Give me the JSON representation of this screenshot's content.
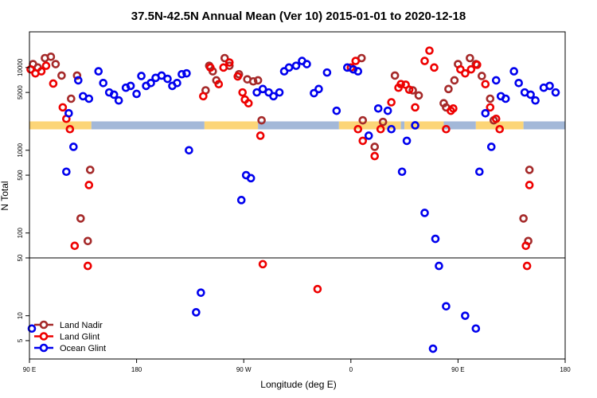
{
  "chart_data": {
    "type": "scatter",
    "title": "37.5N-42.5N Annual Mean (Ver 10)   2015-01-01 to 2020-12-18",
    "xlabel": "Longitude (deg E)",
    "ylabel": "N Total",
    "y_scale": "log",
    "x_tick_labels": [
      {
        "value": 90,
        "label": "90 E"
      },
      {
        "value": 180,
        "label": "180"
      },
      {
        "value": 270,
        "label": "90 W"
      },
      {
        "value": 360,
        "label": "0"
      },
      {
        "value": 450,
        "label": "90 E"
      },
      {
        "value": 540,
        "label": "180"
      }
    ],
    "y_tick_labels": [
      {
        "value": 5,
        "label": "5"
      },
      {
        "value": 10,
        "label": "10"
      },
      {
        "value": 50,
        "label": "50"
      },
      {
        "value": 100,
        "label": "100"
      },
      {
        "value": 500,
        "label": "500"
      },
      {
        "value": 1000,
        "label": "1000"
      },
      {
        "value": 5000,
        "label": "5000"
      },
      {
        "value": 10000,
        "label": "10000"
      }
    ],
    "xlim": [
      90,
      540
    ],
    "ylim": [
      3,
      27000
    ],
    "reference_line_y": 50,
    "surface_band": {
      "y": 2000,
      "segments": [
        {
          "type": "land",
          "from": 90,
          "to": 142
        },
        {
          "type": "ocean",
          "from": 142,
          "to": 237
        },
        {
          "type": "land",
          "from": 237,
          "to": 282
        },
        {
          "type": "ocean",
          "from": 282,
          "to": 350
        },
        {
          "type": "land",
          "from": 350,
          "to": 402
        },
        {
          "type": "ocean",
          "from": 402,
          "to": 405
        },
        {
          "type": "land",
          "from": 405,
          "to": 438
        },
        {
          "type": "ocean",
          "from": 438,
          "to": 465
        },
        {
          "type": "land",
          "from": 465,
          "to": 505
        },
        {
          "type": "ocean",
          "from": 505,
          "to": 540
        }
      ],
      "colors": {
        "land": "#fcd577",
        "ocean": "#a3b8d8"
      }
    },
    "series": [
      {
        "name": "Land Nadir",
        "color": "#a52a2a",
        "points": [
          [
            93,
            11000
          ],
          [
            97,
            10000
          ],
          [
            103,
            13000
          ],
          [
            108,
            13500
          ],
          [
            112,
            11000
          ],
          [
            117,
            8000
          ],
          [
            125,
            4200
          ],
          [
            130,
            8000
          ],
          [
            133,
            150
          ],
          [
            139,
            80
          ],
          [
            141,
            580
          ],
          [
            238,
            5300
          ],
          [
            241,
            10500
          ],
          [
            244,
            9000
          ],
          [
            247,
            7000
          ],
          [
            254,
            13000
          ],
          [
            258,
            10500
          ],
          [
            266,
            8300
          ],
          [
            273,
            7200
          ],
          [
            278,
            6800
          ],
          [
            282,
            7000
          ],
          [
            285,
            2300
          ],
          [
            369,
            13000
          ],
          [
            370,
            2300
          ],
          [
            380,
            1100
          ],
          [
            387,
            2200
          ],
          [
            397,
            8000
          ],
          [
            412,
            5300
          ],
          [
            417,
            4600
          ],
          [
            438,
            3700
          ],
          [
            440,
            3300
          ],
          [
            442,
            5500
          ],
          [
            447,
            7000
          ],
          [
            450,
            11000
          ],
          [
            460,
            13000
          ],
          [
            465,
            11000
          ],
          [
            470,
            7900
          ],
          [
            477,
            4200
          ],
          [
            480,
            2300
          ],
          [
            505,
            150
          ],
          [
            509,
            80
          ],
          [
            510,
            580
          ]
        ]
      },
      {
        "name": "Land Glint",
        "color": "#ee0000",
        "points": [
          [
            91,
            9500
          ],
          [
            95,
            8500
          ],
          [
            100,
            9000
          ],
          [
            104,
            10500
          ],
          [
            110,
            6400
          ],
          [
            118,
            3300
          ],
          [
            121,
            2400
          ],
          [
            124,
            1800
          ],
          [
            128,
            70
          ],
          [
            139,
            40
          ],
          [
            140,
            380
          ],
          [
            236,
            4500
          ],
          [
            242,
            10000
          ],
          [
            249,
            6300
          ],
          [
            253,
            10000
          ],
          [
            258,
            11500
          ],
          [
            265,
            7800
          ],
          [
            269,
            5000
          ],
          [
            271,
            4100
          ],
          [
            274,
            3700
          ],
          [
            284,
            1500
          ],
          [
            286,
            42
          ],
          [
            332,
            21
          ],
          [
            360,
            10000
          ],
          [
            364,
            12000
          ],
          [
            366,
            1800
          ],
          [
            370,
            1300
          ],
          [
            380,
            850
          ],
          [
            385,
            1800
          ],
          [
            394,
            3800
          ],
          [
            400,
            5700
          ],
          [
            402,
            6300
          ],
          [
            406,
            6200
          ],
          [
            409,
            5400
          ],
          [
            414,
            3300
          ],
          [
            422,
            12000
          ],
          [
            426,
            16000
          ],
          [
            430,
            10000
          ],
          [
            440,
            1800
          ],
          [
            444,
            3000
          ],
          [
            446,
            3200
          ],
          [
            452,
            9500
          ],
          [
            456,
            8500
          ],
          [
            461,
            9500
          ],
          [
            466,
            10800
          ],
          [
            473,
            6300
          ],
          [
            477,
            3300
          ],
          [
            482,
            2400
          ],
          [
            485,
            1800
          ],
          [
            507,
            70
          ],
          [
            508,
            40
          ],
          [
            510,
            380
          ]
        ]
      },
      {
        "name": "Ocean Glint",
        "color": "#0000ee",
        "points": [
          [
            92,
            7
          ],
          [
            121,
            550
          ],
          [
            123,
            2800
          ],
          [
            127,
            1100
          ],
          [
            131,
            7000
          ],
          [
            135,
            4500
          ],
          [
            140,
            4200
          ],
          [
            148,
            9000
          ],
          [
            152,
            6500
          ],
          [
            157,
            5000
          ],
          [
            161,
            4700
          ],
          [
            165,
            4000
          ],
          [
            171,
            5700
          ],
          [
            175,
            6000
          ],
          [
            180,
            4800
          ],
          [
            184,
            7900
          ],
          [
            188,
            6000
          ],
          [
            192,
            6500
          ],
          [
            196,
            7500
          ],
          [
            201,
            8000
          ],
          [
            206,
            7300
          ],
          [
            210,
            6000
          ],
          [
            214,
            6500
          ],
          [
            218,
            8300
          ],
          [
            222,
            8500
          ],
          [
            224,
            1000
          ],
          [
            230,
            11
          ],
          [
            234,
            19
          ],
          [
            268,
            250
          ],
          [
            272,
            500
          ],
          [
            276,
            460
          ],
          [
            281,
            5000
          ],
          [
            286,
            5500
          ],
          [
            291,
            5000
          ],
          [
            295,
            4500
          ],
          [
            300,
            5000
          ],
          [
            304,
            9000
          ],
          [
            308,
            10000
          ],
          [
            314,
            10500
          ],
          [
            319,
            12000
          ],
          [
            323,
            11000
          ],
          [
            329,
            4900
          ],
          [
            333,
            5500
          ],
          [
            340,
            8700
          ],
          [
            348,
            3000
          ],
          [
            357,
            10000
          ],
          [
            362,
            9500
          ],
          [
            366,
            9000
          ],
          [
            375,
            1500
          ],
          [
            383,
            3200
          ],
          [
            391,
            3000
          ],
          [
            394,
            1800
          ],
          [
            403,
            550
          ],
          [
            407,
            1300
          ],
          [
            414,
            2000
          ],
          [
            422,
            175
          ],
          [
            429,
            4
          ],
          [
            431,
            85
          ],
          [
            434,
            40
          ],
          [
            440,
            13
          ],
          [
            456,
            10
          ],
          [
            465,
            7
          ],
          [
            468,
            550
          ],
          [
            473,
            2800
          ],
          [
            478,
            1100
          ],
          [
            482,
            7000
          ],
          [
            486,
            4500
          ],
          [
            490,
            4200
          ],
          [
            497,
            9000
          ],
          [
            501,
            6500
          ],
          [
            506,
            5000
          ],
          [
            511,
            4700
          ],
          [
            515,
            4000
          ],
          [
            522,
            5700
          ],
          [
            527,
            6000
          ],
          [
            532,
            5000
          ]
        ]
      }
    ]
  }
}
